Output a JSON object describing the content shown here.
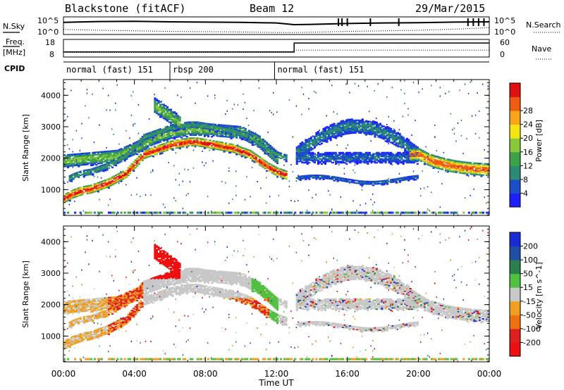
{
  "chart_data": {
    "type": "heatmap",
    "header": {
      "station": "Blackstone (fitACF)",
      "beam": "Beam 12",
      "date": "29/Mar/2015"
    },
    "summary_panels": {
      "left_label_sky": "N.Sky",
      "right_label_search": "N.Search",
      "noise_ticks_left": [
        "10^5",
        "10^0"
      ],
      "noise_ticks_right": [
        "10^5",
        "10^0"
      ],
      "left_label_freq_top": "Freq.",
      "left_label_freq_unit": "[MHz]",
      "freq_ticks": [
        "18",
        "8"
      ],
      "nave_label": "Nave",
      "nave_ticks": [
        "60",
        "0"
      ],
      "cpid_label": "CPID"
    },
    "cpid_segments": [
      {
        "label": "normal (fast) 151",
        "start": 0.0,
        "end": 6.0
      },
      {
        "label": "rbsp 200",
        "start": 6.0,
        "end": 11.9
      },
      {
        "label": "normal (fast) 151",
        "start": 11.9,
        "end": 24.0
      }
    ],
    "freq_series": {
      "x": [
        0,
        13.0,
        13.0,
        24
      ],
      "y": [
        10.5,
        10.5,
        16.5,
        16.5
      ]
    },
    "nave_series": {
      "x": [
        0,
        13.0,
        13.0,
        24
      ],
      "y": [
        13,
        13,
        22,
        22
      ]
    },
    "nsky_series": {
      "x": [
        0,
        2,
        4,
        6,
        8,
        10,
        12,
        13,
        14,
        16,
        18,
        20,
        22,
        24
      ],
      "log10": [
        3.8,
        4.1,
        4.2,
        4.0,
        3.9,
        3.8,
        3.6,
        3.0,
        3.1,
        3.4,
        3.6,
        3.7,
        3.9,
        4.0
      ]
    },
    "nsearch_series": {
      "x": [
        0,
        2,
        4,
        6,
        8,
        10,
        12,
        13,
        14,
        16,
        18,
        20,
        22,
        24
      ],
      "log10": [
        1.3,
        1.0,
        0.8,
        0.6,
        0.5,
        0.4,
        0.2,
        0.2,
        0.3,
        0.6,
        0.8,
        1.0,
        1.4,
        1.9
      ]
    },
    "xaxis": {
      "label": "Time UT",
      "ticks": [
        "00:00",
        "04:00",
        "08:00",
        "12:00",
        "16:00",
        "20:00",
        "00:00"
      ],
      "range_hours": [
        0,
        24
      ]
    },
    "power_panel": {
      "ylabel": "Slant Range [km]",
      "ylim": [
        180,
        4500
      ],
      "yticks": [
        "1000",
        "2000",
        "3000",
        "4000"
      ],
      "colorbar_label": "Power [dB]",
      "colorbar_ticks": [
        "4",
        "8",
        "12",
        "16",
        "20",
        "24",
        "28"
      ],
      "colors": [
        "#1e1eff",
        "#1a4fc8",
        "#2c8a74",
        "#3fa04a",
        "#88c83a",
        "#f2e612",
        "#f8a51a",
        "#f05b12",
        "#e01010"
      ],
      "value_range": [
        0,
        30
      ]
    },
    "velocity_panel": {
      "ylabel": "Slant Range [km]",
      "ylim": [
        180,
        4500
      ],
      "yticks": [
        "1000",
        "2000",
        "3000",
        "4000"
      ],
      "colorbar_label": "Velocity [m s^-1]",
      "colorbar_ticks": [
        "200",
        "100",
        "50",
        "15",
        "-15",
        "-50",
        "-100",
        "-200"
      ],
      "colors": [
        "#1a2bd6",
        "#1f4fa3",
        "#2b7f4f",
        "#52c040",
        "#c8c8c8",
        "#f0a020",
        "#f07010",
        "#e02020",
        "#ee1010"
      ]
    },
    "power_structures": [
      {
        "name": "main band",
        "x": [
          0,
          0.5,
          1,
          1.5,
          2,
          2.5,
          3,
          3.5,
          4,
          4.5,
          5,
          5.5,
          6,
          6.5,
          7,
          7.5,
          8,
          8.5,
          9,
          9.5,
          10,
          10.5,
          11,
          11.5,
          12,
          12.5
        ],
        "y": [
          700,
          850,
          950,
          1000,
          1100,
          1200,
          1350,
          1500,
          1800,
          2100,
          2200,
          2300,
          2400,
          2450,
          2500,
          2500,
          2450,
          2400,
          2350,
          2300,
          2200,
          2100,
          1900,
          1700,
          1550,
          1450
        ],
        "peak_db": 28
      },
      {
        "name": "upper band",
        "x": [
          0,
          1,
          2,
          3,
          4,
          5,
          6,
          7,
          8,
          9,
          10,
          11,
          12
        ],
        "y": [
          1900,
          1950,
          2000,
          2050,
          2300,
          2600,
          2800,
          2900,
          2900,
          2850,
          2800,
          2500,
          2000
        ],
        "peak_db": 14
      },
      {
        "name": "late band",
        "x": [
          20,
          20.5,
          21,
          21.5,
          22,
          22.5,
          23,
          23.5,
          24
        ],
        "y": [
          2100,
          1950,
          1850,
          1780,
          1720,
          1680,
          1650,
          1630,
          1620
        ],
        "peak_db": 24
      }
    ]
  }
}
